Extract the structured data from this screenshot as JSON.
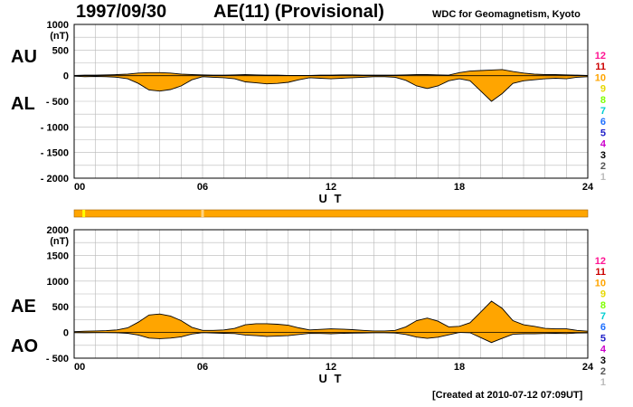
{
  "header": {
    "date": "1997/09/30",
    "index_title": "AE(11) (Provisional)",
    "source": "WDC for Geomagnetism, Kyoto"
  },
  "footer": {
    "created": "[Created at 2010-07-12 07:09UT]"
  },
  "chart_data": [
    {
      "type": "area",
      "panel": "upper",
      "labels": [
        "AU",
        "AL"
      ],
      "unit_label": "(nT)",
      "xlabel": "U T",
      "x_ticks": [
        "00",
        "06",
        "12",
        "18",
        "24"
      ],
      "xlim": [
        0,
        24
      ],
      "ylim": [
        -2000,
        1000
      ],
      "y_ticks": [
        "1000",
        "500",
        "0",
        "- 500",
        "- 1000",
        "- 1500",
        "- 2000"
      ],
      "y_tick_values": [
        1000,
        500,
        0,
        -500,
        -1000,
        -1500,
        -2000
      ],
      "grid": true,
      "fill_color": "#ffa500",
      "x": [
        0,
        0.5,
        1,
        1.5,
        2,
        2.5,
        3,
        3.5,
        4,
        4.5,
        5,
        5.5,
        6,
        6.5,
        7,
        7.5,
        8,
        8.5,
        9,
        9.5,
        10,
        10.5,
        11,
        11.5,
        12,
        12.5,
        13,
        13.5,
        14,
        14.5,
        15,
        15.5,
        16,
        16.5,
        17,
        17.5,
        18,
        18.5,
        19,
        19.5,
        20,
        20.5,
        21,
        21.5,
        22,
        22.5,
        23,
        23.5,
        24
      ],
      "series": [
        {
          "name": "AU",
          "values": [
            5,
            10,
            10,
            15,
            20,
            30,
            50,
            60,
            60,
            50,
            30,
            20,
            15,
            10,
            10,
            15,
            20,
            15,
            10,
            10,
            5,
            5,
            5,
            10,
            10,
            15,
            15,
            10,
            10,
            10,
            10,
            15,
            20,
            20,
            15,
            10,
            60,
            90,
            100,
            110,
            120,
            80,
            50,
            30,
            20,
            20,
            15,
            10,
            5
          ]
        },
        {
          "name": "AL",
          "values": [
            -10,
            -20,
            -15,
            -20,
            -30,
            -60,
            -150,
            -280,
            -300,
            -270,
            -200,
            -80,
            -20,
            -30,
            -40,
            -60,
            -120,
            -140,
            -160,
            -150,
            -130,
            -80,
            -40,
            -50,
            -60,
            -50,
            -40,
            -30,
            -20,
            -20,
            -30,
            -90,
            -200,
            -250,
            -200,
            -100,
            -60,
            -100,
            -300,
            -500,
            -350,
            -150,
            -100,
            -80,
            -60,
            -50,
            -60,
            -30,
            -20
          ]
        }
      ]
    },
    {
      "type": "area",
      "panel": "lower",
      "labels": [
        "AE",
        "AO"
      ],
      "unit_label": "(nT)",
      "xlabel": "U T",
      "x_ticks": [
        "00",
        "06",
        "12",
        "18",
        "24"
      ],
      "xlim": [
        0,
        24
      ],
      "ylim": [
        -500,
        2000
      ],
      "y_ticks": [
        "2000",
        "1500",
        "1000",
        "500",
        "0",
        "- 500"
      ],
      "y_tick_values": [
        2000,
        1500,
        1000,
        500,
        0,
        -500
      ],
      "grid": true,
      "fill_color": "#ffa500",
      "x": [
        0,
        0.5,
        1,
        1.5,
        2,
        2.5,
        3,
        3.5,
        4,
        4.5,
        5,
        5.5,
        6,
        6.5,
        7,
        7.5,
        8,
        8.5,
        9,
        9.5,
        10,
        10.5,
        11,
        11.5,
        12,
        12.5,
        13,
        13.5,
        14,
        14.5,
        15,
        15.5,
        16,
        16.5,
        17,
        17.5,
        18,
        18.5,
        19,
        19.5,
        20,
        20.5,
        21,
        21.5,
        22,
        22.5,
        23,
        23.5,
        24
      ],
      "series": [
        {
          "name": "AE",
          "values": [
            15,
            25,
            30,
            35,
            50,
            90,
            200,
            340,
            360,
            320,
            230,
            100,
            40,
            40,
            50,
            80,
            150,
            170,
            170,
            160,
            140,
            90,
            50,
            60,
            70,
            65,
            55,
            40,
            30,
            30,
            40,
            110,
            230,
            280,
            220,
            110,
            120,
            190,
            400,
            610,
            470,
            230,
            150,
            120,
            80,
            70,
            70,
            40,
            25
          ]
        },
        {
          "name": "AO",
          "values": [
            -3,
            -5,
            -3,
            -3,
            -5,
            -15,
            -50,
            -110,
            -120,
            -110,
            -85,
            -30,
            -3,
            -10,
            -15,
            -22,
            -50,
            -62,
            -75,
            -70,
            -62,
            -38,
            -18,
            -20,
            -25,
            -18,
            -12,
            -10,
            -5,
            -5,
            -10,
            -38,
            -90,
            -115,
            -92,
            -45,
            0,
            -5,
            -100,
            -195,
            -115,
            -35,
            -25,
            -25,
            -20,
            -15,
            -22,
            -10,
            -7
          ]
        }
      ]
    },
    {
      "type": "bar",
      "panel": "activity-strip",
      "xlim": [
        0,
        24
      ],
      "fill_color": "#ffa500",
      "marks": [
        {
          "x": 0.45,
          "color": "#ffff00"
        },
        {
          "x": 6.0,
          "color": "#ffd27f"
        }
      ]
    }
  ],
  "station_legend": {
    "labels": [
      "12",
      "11",
      "10",
      "9",
      "8",
      "7",
      "6",
      "5",
      "4",
      "3",
      "2",
      "1"
    ],
    "colors": [
      "#ff1493",
      "#cc0000",
      "#ffa500",
      "#e6d800",
      "#7fff00",
      "#00ced1",
      "#1e6fff",
      "#1f1fc8",
      "#cc00cc",
      "#000000",
      "#555555",
      "#bbbbbb"
    ]
  }
}
